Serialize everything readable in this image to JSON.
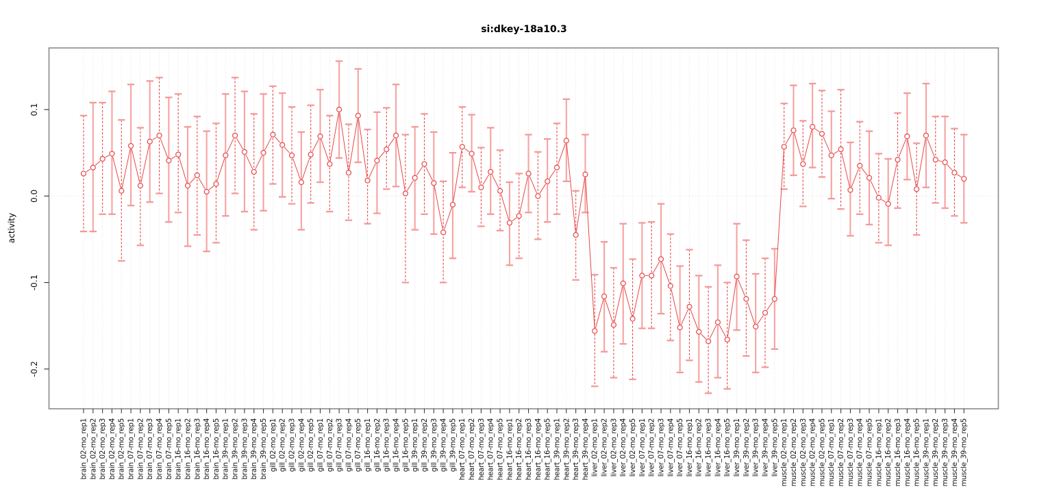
{
  "page": {
    "background": "#ffffff"
  },
  "chart_data": {
    "type": "line",
    "title": "si:dkey-18a10.3",
    "ylabel": "activity",
    "xlabel": "",
    "legend_position": "none",
    "grid": "vertical dotted gridline at every category; dotted horizontal line at y=0",
    "ylim": [
      -0.242,
      0.172
    ],
    "yticks": [
      0.1,
      0.0,
      -0.1,
      -0.2
    ],
    "ytick_labels": [
      "0.1",
      "0.0",
      "-0.1",
      "-0.2"
    ],
    "marker": "open-circle",
    "series_color": "#e84545",
    "errorbar_dashed_color": "#e84545",
    "errorbar_solid_color": "#f7a2a2",
    "errorbar_cap_color": "#f59999",
    "box_color": "#8a8a8a",
    "gridline_color": "#dcdcdc",
    "categories": [
      "brain_02-mo_rep1",
      "brain_02-mo_rep2",
      "brain_02-mo_rep3",
      "brain_02-mo_rep4",
      "brain_02-mo_rep5",
      "brain_07-mo_rep1",
      "brain_07-mo_rep2",
      "brain_07-mo_rep3",
      "brain_07-mo_rep4",
      "brain_07-mo_rep5",
      "brain_16-mo_rep1",
      "brain_16-mo_rep2",
      "brain_16-mo_rep3",
      "brain_16-mo_rep4",
      "brain_16-mo_rep5",
      "brain_39-mo_rep1",
      "brain_39-mo_rep2",
      "brain_39-mo_rep3",
      "brain_39-mo_rep4",
      "brain_39-mo_rep5",
      "gill_02-mo_rep1",
      "gill_02-mo_rep2",
      "gill_02-mo_rep3",
      "gill_02-mo_rep4",
      "gill_02-mo_rep5",
      "gill_07-mo_rep1",
      "gill_07-mo_rep2",
      "gill_07-mo_rep3",
      "gill_07-mo_rep4",
      "gill_07-mo_rep5",
      "gill_16-mo_rep1",
      "gill_16-mo_rep2",
      "gill_16-mo_rep3",
      "gill_16-mo_rep4",
      "gill_16-mo_rep5",
      "gill_39-mo_rep1",
      "gill_39-mo_rep2",
      "gill_39-mo_rep3",
      "gill_39-mo_rep4",
      "gill_39-mo_rep5",
      "heart_07-mo_rep1",
      "heart_07-mo_rep2",
      "heart_07-mo_rep3",
      "heart_07-mo_rep4",
      "heart_07-mo_rep5",
      "heart_16-mo_rep1",
      "heart_16-mo_rep2",
      "heart_16-mo_rep3",
      "heart_16-mo_rep4",
      "heart_16-mo_rep5",
      "heart_39-mo_rep1",
      "heart_39-mo_rep2",
      "heart_39-mo_rep3",
      "heart_39-mo_rep4",
      "liver_02-mo_rep1",
      "liver_02-mo_rep2",
      "liver_02-mo_rep3",
      "liver_02-mo_rep4",
      "liver_02-mo_rep5",
      "liver_07-mo_rep1",
      "liver_07-mo_rep2",
      "liver_07-mo_rep3",
      "liver_07-mo_rep4",
      "liver_07-mo_rep5",
      "liver_16-mo_rep1",
      "liver_16-mo_rep2",
      "liver_16-mo_rep3",
      "liver_16-mo_rep4",
      "liver_16-mo_rep5",
      "liver_39-mo_rep1",
      "liver_39-mo_rep2",
      "liver_39-mo_rep3",
      "liver_39-mo_rep4",
      "liver_39-mo_rep5",
      "muscle_02-mo_rep1",
      "muscle_02-mo_rep2",
      "muscle_02-mo_rep3",
      "muscle_02-mo_rep4",
      "muscle_02-mo_rep5",
      "muscle_07-mo_rep1",
      "muscle_07-mo_rep2",
      "muscle_07-mo_rep3",
      "muscle_07-mo_rep4",
      "muscle_07-mo_rep5",
      "muscle_16-mo_rep1",
      "muscle_16-mo_rep2",
      "muscle_16-mo_rep3",
      "muscle_16-mo_rep4",
      "muscle_16-mo_rep5",
      "muscle_39-mo_rep1",
      "muscle_39-mo_rep2",
      "muscle_39-mo_rep3",
      "muscle_39-mo_rep4",
      "muscle_39-mo_rep5"
    ],
    "values": [
      0.026,
      0.033,
      0.043,
      0.049,
      0.006,
      0.058,
      0.012,
      0.063,
      0.07,
      0.041,
      0.048,
      0.012,
      0.024,
      0.005,
      0.014,
      0.047,
      0.07,
      0.051,
      0.028,
      0.05,
      0.071,
      0.059,
      0.047,
      0.016,
      0.048,
      0.069,
      0.037,
      0.1,
      0.027,
      0.093,
      0.018,
      0.041,
      0.054,
      0.07,
      0.003,
      0.021,
      0.037,
      0.015,
      -0.042,
      -0.01,
      0.057,
      0.049,
      0.01,
      0.028,
      0.006,
      -0.031,
      -0.023,
      0.026,
      0.0,
      0.017,
      0.033,
      0.064,
      -0.045,
      0.025,
      -0.156,
      -0.116,
      -0.149,
      -0.101,
      -0.142,
      -0.092,
      -0.092,
      -0.073,
      -0.104,
      -0.152,
      -0.128,
      -0.157,
      -0.168,
      -0.146,
      -0.166,
      -0.093,
      -0.119,
      -0.151,
      -0.135,
      -0.119,
      0.057,
      0.076,
      0.037,
      0.08,
      0.072,
      0.047,
      0.054,
      0.007,
      0.035,
      0.021,
      -0.002,
      -0.009,
      0.042,
      0.069,
      0.008,
      0.07,
      0.042,
      0.039,
      0.027,
      0.02
    ],
    "err_lo": [
      -0.041,
      -0.041,
      -0.021,
      -0.021,
      -0.075,
      -0.011,
      -0.057,
      -0.007,
      0.003,
      -0.03,
      -0.019,
      -0.058,
      -0.045,
      -0.064,
      -0.054,
      -0.023,
      0.003,
      -0.018,
      -0.039,
      -0.017,
      0.014,
      -0.001,
      -0.009,
      -0.039,
      -0.008,
      0.016,
      -0.018,
      0.044,
      -0.028,
      0.039,
      -0.032,
      -0.02,
      0.008,
      0.011,
      -0.1,
      -0.039,
      -0.021,
      -0.044,
      -0.1,
      -0.072,
      0.01,
      0.005,
      -0.035,
      -0.021,
      -0.04,
      -0.08,
      -0.072,
      -0.019,
      -0.05,
      -0.03,
      -0.021,
      0.017,
      -0.097,
      -0.019,
      -0.22,
      -0.18,
      -0.21,
      -0.171,
      -0.212,
      -0.153,
      -0.153,
      -0.136,
      -0.167,
      -0.204,
      -0.19,
      -0.215,
      -0.228,
      -0.21,
      -0.223,
      -0.155,
      -0.185,
      -0.204,
      -0.198,
      -0.177,
      0.008,
      0.024,
      -0.012,
      0.033,
      0.022,
      -0.003,
      -0.015,
      -0.046,
      -0.021,
      -0.033,
      -0.054,
      -0.057,
      -0.014,
      0.019,
      -0.045,
      0.01,
      -0.008,
      -0.014,
      -0.023,
      -0.031
    ],
    "err_hi": [
      0.093,
      0.108,
      0.108,
      0.121,
      0.088,
      0.129,
      0.079,
      0.133,
      0.137,
      0.114,
      0.118,
      0.08,
      0.092,
      0.075,
      0.084,
      0.118,
      0.137,
      0.121,
      0.095,
      0.118,
      0.127,
      0.119,
      0.103,
      0.074,
      0.105,
      0.123,
      0.093,
      0.156,
      0.083,
      0.147,
      0.077,
      0.097,
      0.102,
      0.129,
      0.071,
      0.08,
      0.095,
      0.074,
      0.017,
      0.05,
      0.103,
      0.094,
      0.056,
      0.079,
      0.053,
      0.016,
      0.026,
      0.071,
      0.051,
      0.066,
      0.084,
      0.112,
      0.006,
      0.071,
      -0.091,
      -0.053,
      -0.083,
      -0.032,
      -0.073,
      -0.031,
      -0.03,
      -0.009,
      -0.044,
      -0.081,
      -0.062,
      -0.092,
      -0.105,
      -0.08,
      -0.1,
      -0.032,
      -0.051,
      -0.09,
      -0.072,
      -0.061,
      0.107,
      0.128,
      0.087,
      0.13,
      0.122,
      0.098,
      0.123,
      0.062,
      0.086,
      0.075,
      0.049,
      0.043,
      0.096,
      0.119,
      0.061,
      0.13,
      0.092,
      0.092,
      0.078,
      0.071
    ]
  }
}
